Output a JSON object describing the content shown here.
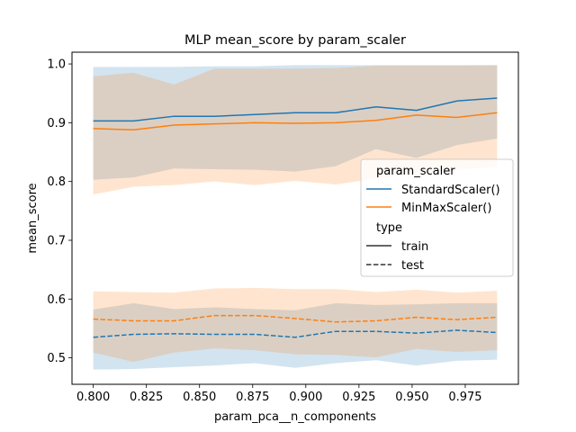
{
  "chart_data": {
    "type": "line",
    "title": "MLP mean_score by param_scaler",
    "xlabel": "param_pca__n_components",
    "ylabel": "mean_score",
    "xlim": [
      0.79,
      1.0
    ],
    "ylim": [
      0.455,
      1.02
    ],
    "xticks": [
      0.8,
      0.825,
      0.85,
      0.875,
      0.9,
      0.925,
      0.95,
      0.975
    ],
    "xtick_labels": [
      "0.800",
      "0.825",
      "0.850",
      "0.875",
      "0.900",
      "0.925",
      "0.950",
      "0.975"
    ],
    "yticks": [
      0.5,
      0.6,
      0.7,
      0.8,
      0.9,
      1.0
    ],
    "ytick_labels": [
      "0.5",
      "0.6",
      "0.7",
      "0.8",
      "0.9",
      "1.0"
    ],
    "grid": false,
    "x": [
      0.8,
      0.819,
      0.838,
      0.857,
      0.876,
      0.895,
      0.914,
      0.933,
      0.952,
      0.971,
      0.99
    ],
    "series": [
      {
        "scaler": "StandardScaler()",
        "type": "train",
        "color": "#1f77b4",
        "dash": "solid",
        "values": [
          0.903,
          0.903,
          0.911,
          0.911,
          0.914,
          0.917,
          0.917,
          0.927,
          0.921,
          0.937,
          0.942
        ],
        "band_low": [
          0.803,
          0.807,
          0.822,
          0.821,
          0.82,
          0.817,
          0.826,
          0.855,
          0.84,
          0.862,
          0.873
        ],
        "band_high": [
          0.995,
          0.995,
          0.995,
          0.996,
          0.996,
          0.998,
          0.998,
          0.998,
          0.998,
          0.998,
          0.998
        ]
      },
      {
        "scaler": "MinMaxScaler()",
        "type": "train",
        "color": "#ff7f0e",
        "dash": "solid",
        "values": [
          0.89,
          0.888,
          0.896,
          0.898,
          0.9,
          0.899,
          0.9,
          0.904,
          0.913,
          0.909,
          0.917
        ],
        "band_low": [
          0.778,
          0.791,
          0.794,
          0.8,
          0.794,
          0.801,
          0.795,
          0.805,
          0.815,
          0.82,
          0.825
        ],
        "band_high": [
          0.979,
          0.985,
          0.965,
          0.992,
          0.992,
          0.992,
          0.993,
          0.997,
          0.997,
          0.997,
          0.998
        ]
      },
      {
        "scaler": "StandardScaler()",
        "type": "test",
        "color": "#1f77b4",
        "dash": "dashed",
        "values": [
          0.535,
          0.54,
          0.541,
          0.54,
          0.54,
          0.535,
          0.545,
          0.545,
          0.542,
          0.547,
          0.543
        ],
        "band_low": [
          0.48,
          0.481,
          0.484,
          0.487,
          0.491,
          0.483,
          0.491,
          0.496,
          0.487,
          0.495,
          0.497
        ],
        "band_high": [
          0.582,
          0.593,
          0.583,
          0.586,
          0.583,
          0.581,
          0.593,
          0.59,
          0.591,
          0.593,
          0.593
        ]
      },
      {
        "scaler": "MinMaxScaler()",
        "type": "test",
        "color": "#ff7f0e",
        "dash": "dashed",
        "values": [
          0.566,
          0.563,
          0.563,
          0.572,
          0.572,
          0.567,
          0.561,
          0.563,
          0.569,
          0.565,
          0.569
        ],
        "band_low": [
          0.509,
          0.493,
          0.509,
          0.516,
          0.513,
          0.506,
          0.505,
          0.501,
          0.515,
          0.51,
          0.513
        ],
        "band_high": [
          0.613,
          0.612,
          0.611,
          0.618,
          0.619,
          0.617,
          0.617,
          0.612,
          0.616,
          0.611,
          0.614
        ]
      }
    ],
    "legend": {
      "placement": "center-right",
      "hue_title": "param_scaler",
      "hue_entries": [
        {
          "label": "StandardScaler()",
          "color": "#1f77b4"
        },
        {
          "label": "MinMaxScaler()",
          "color": "#ff7f0e"
        }
      ],
      "style_title": "type",
      "style_entries": [
        {
          "label": "train",
          "dash": "solid"
        },
        {
          "label": "test",
          "dash": "dashed"
        }
      ]
    }
  }
}
